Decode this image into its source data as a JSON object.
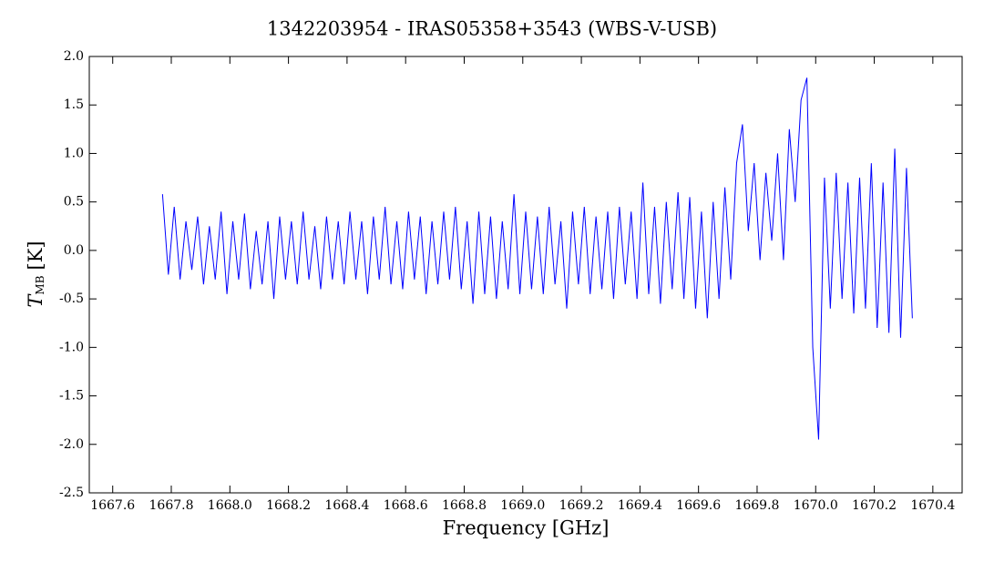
{
  "chart_data": {
    "type": "line",
    "title": "1342203954 - IRAS05358+3543 (WBS-V-USB)",
    "x_label": "Frequency [GHz]",
    "y_label": {
      "symbol": "T",
      "subscript": "MB",
      "unit": "[K]"
    },
    "color": "#0000ff",
    "xlim": [
      1667.52,
      1670.5
    ],
    "ylim": [
      -2.5,
      2.0
    ],
    "xticks": [
      1667.6,
      1667.8,
      {
        "value": 1668,
        "label": "1668.0"
      },
      1668.2,
      1668.4,
      1668.6,
      1668.8,
      {
        "value": 1669,
        "label": "1669.0"
      },
      1669.2,
      1669.4,
      1669.6,
      1669.8,
      {
        "value": 1670,
        "label": "1670.0"
      },
      1670.2,
      1670.4
    ],
    "yticks": [
      -2.5,
      {
        "value": -2,
        "label": "-2.0"
      },
      -1.5,
      {
        "value": -1,
        "label": "-1.0"
      },
      -0.5,
      {
        "value": 0,
        "label": "0.0"
      },
      0.5,
      {
        "value": 1,
        "label": "1.0"
      },
      1.5,
      {
        "value": 2,
        "label": "2.0"
      }
    ],
    "x": [
      1667.77,
      1667.79,
      1667.81,
      1667.83,
      1667.85,
      1667.87,
      1667.89,
      1667.91,
      1667.93,
      1667.95,
      1667.97,
      1667.99,
      1668.01,
      1668.03,
      1668.05,
      1668.07,
      1668.09,
      1668.11,
      1668.13,
      1668.15,
      1668.17,
      1668.19,
      1668.21,
      1668.23,
      1668.25,
      1668.27,
      1668.29,
      1668.31,
      1668.33,
      1668.35,
      1668.37,
      1668.39,
      1668.41,
      1668.43,
      1668.45,
      1668.47,
      1668.49,
      1668.51,
      1668.53,
      1668.55,
      1668.57,
      1668.59,
      1668.61,
      1668.63,
      1668.65,
      1668.67,
      1668.69,
      1668.71,
      1668.73,
      1668.75,
      1668.77,
      1668.79,
      1668.81,
      1668.83,
      1668.85,
      1668.87,
      1668.89,
      1668.91,
      1668.93,
      1668.95,
      1668.97,
      1668.99,
      1669.01,
      1669.03,
      1669.05,
      1669.07,
      1669.09,
      1669.11,
      1669.13,
      1669.15,
      1669.17,
      1669.19,
      1669.21,
      1669.23,
      1669.25,
      1669.27,
      1669.29,
      1669.31,
      1669.33,
      1669.35,
      1669.37,
      1669.39,
      1669.41,
      1669.43,
      1669.45,
      1669.47,
      1669.49,
      1669.51,
      1669.53,
      1669.55,
      1669.57,
      1669.59,
      1669.61,
      1669.63,
      1669.65,
      1669.67,
      1669.69,
      1669.71,
      1669.73,
      1669.75,
      1669.77,
      1669.79,
      1669.81,
      1669.83,
      1669.85,
      1669.87,
      1669.89,
      1669.91,
      1669.93,
      1669.95,
      1669.97,
      1669.99,
      1670.01,
      1670.03,
      1670.05,
      1670.07,
      1670.09,
      1670.11,
      1670.13,
      1670.15,
      1670.17,
      1670.19,
      1670.21,
      1670.23,
      1670.25,
      1670.27,
      1670.29,
      1670.31,
      1670.33
    ],
    "values": [
      0.58,
      -0.25,
      0.45,
      -0.3,
      0.3,
      -0.2,
      0.35,
      -0.35,
      0.25,
      -0.3,
      0.4,
      -0.45,
      0.3,
      -0.3,
      0.38,
      -0.4,
      0.2,
      -0.35,
      0.3,
      -0.5,
      0.35,
      -0.3,
      0.3,
      -0.35,
      0.4,
      -0.3,
      0.25,
      -0.4,
      0.35,
      -0.3,
      0.3,
      -0.35,
      0.4,
      -0.3,
      0.3,
      -0.45,
      0.35,
      -0.3,
      0.45,
      -0.35,
      0.3,
      -0.4,
      0.4,
      -0.3,
      0.35,
      -0.45,
      0.3,
      -0.35,
      0.4,
      -0.3,
      0.45,
      -0.4,
      0.3,
      -0.55,
      0.4,
      -0.45,
      0.35,
      -0.5,
      0.3,
      -0.4,
      0.58,
      -0.45,
      0.4,
      -0.4,
      0.35,
      -0.45,
      0.45,
      -0.35,
      0.3,
      -0.6,
      0.4,
      -0.35,
      0.45,
      -0.45,
      0.35,
      -0.4,
      0.4,
      -0.5,
      0.45,
      -0.35,
      0.4,
      -0.5,
      0.7,
      -0.45,
      0.45,
      -0.55,
      0.5,
      -0.4,
      0.6,
      -0.5,
      0.55,
      -0.6,
      0.4,
      -0.7,
      0.5,
      -0.5,
      0.65,
      -0.3,
      0.9,
      1.3,
      0.2,
      0.9,
      -0.1,
      0.8,
      0.1,
      1.0,
      -0.1,
      1.25,
      0.5,
      1.55,
      1.78,
      -1.0,
      -1.95,
      0.75,
      -0.6,
      0.8,
      -0.5,
      0.7,
      -0.65,
      0.75,
      -0.6,
      0.9,
      -0.8,
      0.7,
      -0.85,
      1.05,
      -0.9,
      0.85,
      -0.7
    ]
  }
}
